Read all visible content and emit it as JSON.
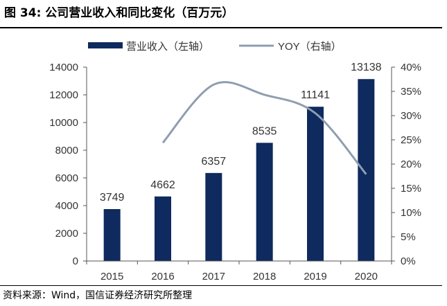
{
  "figure_title": "图 34:  公司营业收入和同比变化（百万元）",
  "source_note": "资料来源：Wind，国信证券经济研究所整理",
  "legend": {
    "bar_label": "营业收入（左轴）",
    "line_label": "YOY（右轴）"
  },
  "colors": {
    "bar": "#0e2a5e",
    "line": "#8e9eb0",
    "axis": "#555555"
  },
  "chart_data": {
    "type": "bar",
    "categories": [
      "2015",
      "2016",
      "2017",
      "2018",
      "2019",
      "2020"
    ],
    "series": [
      {
        "name": "营业收入（左轴）",
        "type": "bar",
        "axis": "left",
        "values": [
          3749,
          4662,
          6357,
          8535,
          11141,
          13138
        ]
      },
      {
        "name": "YOY（右轴）",
        "type": "line",
        "axis": "right",
        "values": [
          null,
          24.4,
          36.4,
          34.3,
          30.5,
          17.9
        ]
      }
    ],
    "data_labels": [
      "3749",
      "4662",
      "6357",
      "8535",
      "11141",
      "13138"
    ],
    "y_left": {
      "range": [
        0,
        14000
      ],
      "ticks": [
        "0",
        "2000",
        "4000",
        "6000",
        "8000",
        "10000",
        "12000",
        "14000"
      ]
    },
    "y_right": {
      "range": [
        0,
        40
      ],
      "unit": "%",
      "ticks": [
        "0%",
        "5%",
        "10%",
        "15%",
        "20%",
        "25%",
        "30%",
        "35%",
        "40%"
      ]
    },
    "grid": false,
    "legend_position": "top"
  }
}
